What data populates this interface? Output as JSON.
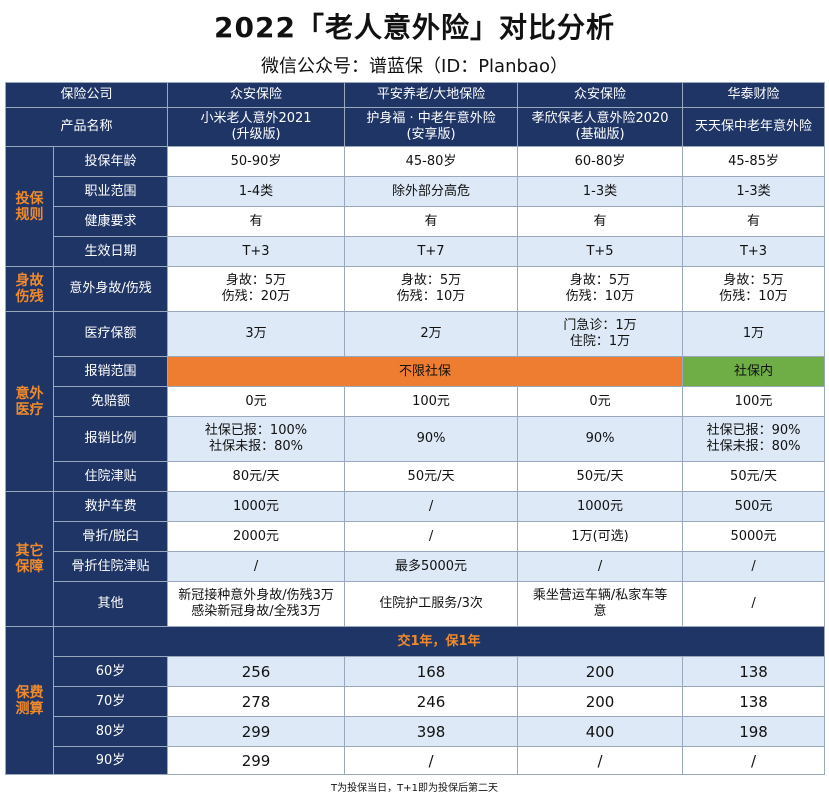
{
  "title": "2022「老人意外险」对比分析",
  "subtitle": "微信公众号：谱蓝保（ID：Planbao）",
  "header": {
    "company_label": "保险公司",
    "product_label": "产品名称",
    "companies": [
      "众安保险",
      "平安养老/大地保险",
      "众安保险",
      "华泰财险"
    ],
    "products": [
      [
        "小米老人意外2021",
        "(升级版)"
      ],
      [
        "护身福 · 中老年意外险",
        "(安享版)"
      ],
      [
        "孝欣保老人意外险2020",
        "(基础版)"
      ],
      [
        "天天保中老年意外险"
      ]
    ]
  },
  "categories": {
    "rules": [
      "投保",
      "规则"
    ],
    "death": [
      "身故",
      "伤残"
    ],
    "medical": [
      "意外",
      "医疗"
    ],
    "other": [
      "其它",
      "保障"
    ],
    "premium": [
      "保费",
      "测算"
    ]
  },
  "rows": {
    "age": {
      "label": "投保年龄",
      "values": [
        "50-90岁",
        "45-80岁",
        "60-80岁",
        "45-85岁"
      ]
    },
    "occupation": {
      "label": "职业范围",
      "values": [
        "1-4类",
        "除外部分高危",
        "1-3类",
        "1-3类"
      ]
    },
    "health": {
      "label": "健康要求",
      "values": [
        "有",
        "有",
        "有",
        "有"
      ]
    },
    "effective": {
      "label": "生效日期",
      "values": [
        "T+3",
        "T+7",
        "T+5",
        "T+3"
      ]
    },
    "death_disability": {
      "label": "意外身故/伤残",
      "values": [
        [
          "身故：5万",
          "伤残：20万"
        ],
        [
          "身故：5万",
          "伤残：10万"
        ],
        [
          "身故：5万",
          "伤残：10万"
        ],
        [
          "身故：5万",
          "伤残：10万"
        ]
      ]
    },
    "medical_amount": {
      "label": "医疗保额",
      "values": [
        [
          "3万"
        ],
        [
          "2万"
        ],
        [
          "门急诊：1万",
          "住院：1万"
        ],
        [
          "1万"
        ]
      ]
    },
    "reimb_scope": {
      "label": "报销范围",
      "merged_value": "不限社保",
      "last_value": "社保内"
    },
    "deductible": {
      "label": "免赔额",
      "values": [
        "0元",
        "100元",
        "0元",
        "100元"
      ]
    },
    "reimb_ratio": {
      "label": "报销比例",
      "values": [
        [
          "社保已报：100%",
          "社保未报：80%"
        ],
        [
          "90%"
        ],
        [
          "90%"
        ],
        [
          "社保已报：90%",
          "社保未报：80%"
        ]
      ]
    },
    "hospital_allowance": {
      "label": "住院津贴",
      "values": [
        "80元/天",
        "50元/天",
        "50元/天",
        "50元/天"
      ]
    },
    "ambulance": {
      "label": "救护车费",
      "values": [
        "1000元",
        "/",
        "1000元",
        "500元"
      ]
    },
    "fracture": {
      "label": "骨折/脱臼",
      "values": [
        "2000元",
        "/",
        "1万(可选)",
        "5000元"
      ]
    },
    "fracture_allowance": {
      "label": "骨折住院津贴",
      "values": [
        "/",
        "最多5000元",
        "/",
        "/"
      ]
    },
    "others": {
      "label": "其他",
      "values": [
        [
          "新冠接种意外身故/伤残3万",
          "感染新冠身故/全残3万"
        ],
        [
          "住院护工服务/3次"
        ],
        [
          "乘坐营运车辆/私家车等",
          "意"
        ],
        [
          "/"
        ]
      ]
    }
  },
  "premium": {
    "band": "交1年，保1年",
    "rows": [
      {
        "label": "60岁",
        "values": [
          "256",
          "168",
          "200",
          "138"
        ]
      },
      {
        "label": "70岁",
        "values": [
          "278",
          "246",
          "200",
          "138"
        ]
      },
      {
        "label": "80岁",
        "values": [
          "299",
          "398",
          "400",
          "198"
        ]
      },
      {
        "label": "90岁",
        "values": [
          "299",
          "/",
          "/",
          "/"
        ]
      }
    ]
  },
  "footnote": "T为投保当日，T+1即为投保后第二天",
  "colors": {
    "navy": "#1f3566",
    "orange_text": "#f08a2a",
    "orange_fill": "#ee7d31",
    "green_fill": "#6fad46",
    "light_blue": "#dde9f6"
  }
}
